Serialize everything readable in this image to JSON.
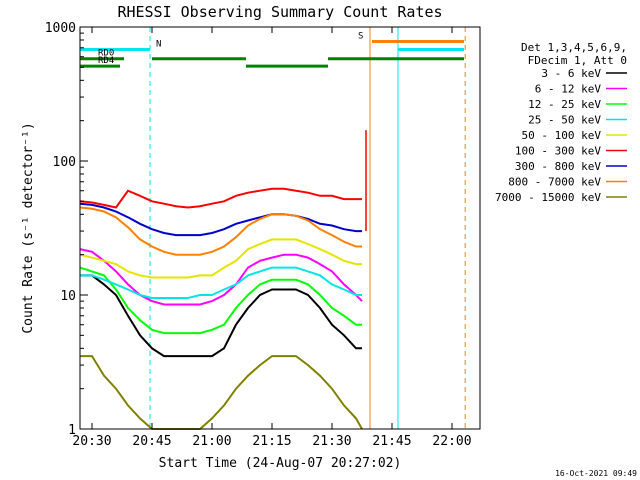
{
  "chart_data": {
    "type": "line",
    "title": "RHESSI Observing Summary Count Rates",
    "xlabel": "Start Time (24-Aug-07 20:27:02)",
    "ylabel": "Count Rate (s⁻¹ detector⁻¹)",
    "yscale": "log",
    "ylim": [
      1,
      1000
    ],
    "xlim_minutes": [
      0,
      100
    ],
    "x_ticks": [
      {
        "label": "20:30",
        "min": 3
      },
      {
        "label": "20:45",
        "min": 18
      },
      {
        "label": "21:00",
        "min": 33
      },
      {
        "label": "21:15",
        "min": 48
      },
      {
        "label": "21:30",
        "min": 63
      },
      {
        "label": "21:45",
        "min": 78
      },
      {
        "label": "22:00",
        "min": 93
      }
    ],
    "y_ticks": [
      {
        "label": "1",
        "v": 1
      },
      {
        "label": "10",
        "v": 10
      },
      {
        "label": "100",
        "v": 100
      },
      {
        "label": "1000",
        "v": 1000
      }
    ],
    "legend_header": [
      "Det 1,3,4,5,6,9,",
      "FDecim 1, Att 0"
    ],
    "legend_placement": "right",
    "flags": [
      {
        "label": "N",
        "color": "#00e5e5",
        "segments": [
          [
            0,
            17.5
          ],
          [
            79.5,
            96
          ]
        ],
        "value": 680
      },
      {
        "label": "S",
        "color": "#ff8000",
        "segments": [
          [
            73,
            96
          ]
        ],
        "value": 780
      },
      {
        "label": "RD0",
        "color": "#008000",
        "segments": [
          [
            0,
            11
          ],
          [
            18,
            41.5
          ],
          [
            62,
            96
          ]
        ],
        "value": 580
      },
      {
        "label": "RD4",
        "color": "#008000",
        "segments": [
          [
            0,
            10
          ],
          [
            41.5,
            62
          ]
        ],
        "value": 510
      }
    ],
    "vertical_lines": [
      {
        "min": 17.5,
        "color": "#00e5e5",
        "style": "dashed"
      },
      {
        "min": 72.5,
        "color": "#ff8000",
        "style": "solid"
      },
      {
        "min": 79.5,
        "color": "#00e5e5",
        "style": "solid"
      },
      {
        "min": 96.3,
        "color": "#ff8000",
        "style": "dashed"
      }
    ],
    "x": [
      0,
      3,
      6,
      9,
      12,
      15,
      18,
      21,
      24,
      27,
      30,
      33,
      36,
      39,
      42,
      45,
      48,
      51,
      54,
      57,
      60,
      63,
      66,
      69,
      70.5
    ],
    "series": [
      {
        "name": "3 - 6 keV",
        "color": "#000000",
        "values": [
          14,
          14,
          12,
          10,
          7,
          5,
          4,
          3.5,
          3.5,
          3.5,
          3.5,
          3.5,
          4,
          6,
          8,
          10,
          11,
          11,
          11,
          10,
          8,
          6,
          5,
          4,
          4
        ]
      },
      {
        "name": "6 - 12 keV",
        "color": "#ff00ff",
        "values": [
          22,
          21,
          18,
          15,
          12,
          10,
          9,
          8.5,
          8.5,
          8.5,
          8.5,
          9,
          10,
          12,
          16,
          18,
          19,
          20,
          20,
          19,
          17,
          15,
          12,
          10,
          9
        ]
      },
      {
        "name": "12 - 25 keV",
        "color": "#00ff00",
        "values": [
          16,
          15,
          14,
          11,
          8,
          6.5,
          5.5,
          5.2,
          5.2,
          5.2,
          5.2,
          5.5,
          6,
          8,
          10,
          12,
          13,
          13,
          13,
          12,
          10,
          8,
          7,
          6,
          6
        ]
      },
      {
        "name": "25 - 50 keV",
        "color": "#00e5e5",
        "values": [
          14,
          14,
          13,
          12,
          11,
          10,
          9.5,
          9.5,
          9.5,
          9.5,
          10,
          10,
          11,
          12,
          14,
          15,
          16,
          16,
          16,
          15,
          14,
          12,
          11,
          10,
          10
        ]
      },
      {
        "name": "50 - 100 keV",
        "color": "#e5e500",
        "values": [
          20,
          19,
          18,
          17,
          15,
          14,
          13.5,
          13.5,
          13.5,
          13.5,
          14,
          14,
          16,
          18,
          22,
          24,
          26,
          26,
          26,
          24,
          22,
          20,
          18,
          17,
          17
        ]
      },
      {
        "name": "100 - 300 keV",
        "color": "#ff0000",
        "values": [
          50,
          49,
          47,
          45,
          60,
          55,
          50,
          48,
          46,
          45,
          46,
          48,
          50,
          55,
          58,
          60,
          62,
          62,
          60,
          58,
          55,
          55,
          52,
          52,
          52
        ]
      },
      {
        "name": "300 - 800 keV",
        "color": "#0000cc",
        "values": [
          48,
          47,
          45,
          42,
          38,
          34,
          31,
          29,
          28,
          28,
          28,
          29,
          31,
          34,
          36,
          38,
          40,
          40,
          39,
          37,
          34,
          33,
          31,
          30,
          30
        ]
      },
      {
        "name": "800 - 7000 keV",
        "color": "#ff8000",
        "values": [
          45,
          44,
          42,
          38,
          32,
          26,
          23,
          21,
          20,
          20,
          20,
          21,
          23,
          27,
          33,
          37,
          40,
          40,
          39,
          36,
          31,
          28,
          25,
          23,
          23
        ]
      },
      {
        "name": "7000 - 15000 keV",
        "color": "#808000",
        "values": [
          3.5,
          3.5,
          2.5,
          2,
          1.5,
          1.2,
          1,
          1,
          1,
          1,
          1,
          1.2,
          1.5,
          2,
          2.5,
          3,
          3.5,
          3.5,
          3.5,
          3,
          2.5,
          2,
          1.5,
          1.2,
          1
        ]
      }
    ],
    "spike": {
      "min": 71.5,
      "value": 170,
      "color": "#ff0000"
    },
    "timestamp": "16-Oct-2021 09:49"
  }
}
